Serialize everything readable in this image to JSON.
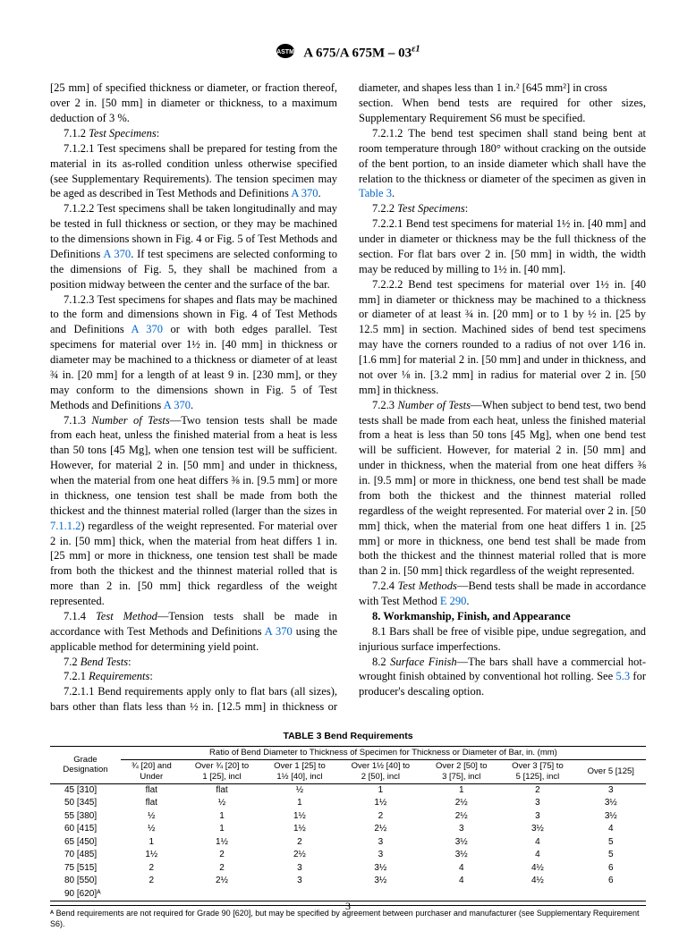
{
  "header": {
    "designation": "A 675/A 675M – 03",
    "eps": "ε1"
  },
  "body": {
    "p1": "[25 mm] of specified thickness or diameter, or fraction thereof, over 2 in. [50 mm] in diameter or thickness, to a maximum deduction of 3 %.",
    "s712_num": "7.1.2 ",
    "s712_t": "Test Specimens",
    "s7121": "7.1.2.1 Test specimens shall be prepared for testing from the material in its as-rolled condition unless otherwise specified (see Supplementary Requirements). The tension specimen may be aged as described in Test Methods and Definitions ",
    "a370": "A 370",
    "s7122a": "7.1.2.2 Test specimens shall be taken longitudinally and may be tested in full thickness or section, or they may be machined to the dimensions shown in Fig. 4 or Fig. 5 of Test Methods and Definitions ",
    "s7122b": ". If test specimens are selected conforming to the dimensions of Fig. 5, they shall be machined from a position midway between the center and the surface of the bar.",
    "s7123a": "7.1.2.3 Test specimens for shapes and flats may be machined to the form and dimensions shown in Fig. 4 of Test Methods and Definitions ",
    "s7123b": " or with both edges parallel. Test specimens for material over 1½ in. [40 mm] in thickness or diameter may be machined to a thickness or diameter of at least ¾ in. [20 mm] for a length of at least 9 in. [230 mm], or they may conform to the dimensions shown in Fig. 5 of Test Methods and Definitions ",
    "s713_num": "7.1.3 ",
    "s713_t": "Number of Tests",
    "s713a": "—Two tension tests shall be made from each heat, unless the finished material from a heat is less than 50 tons [45 Mg], when one tension test will be sufficient. However, for material 2 in. [50 mm] and under in thickness, when the material from one heat differs ⅜ in. [9.5 mm] or more in thickness, one tension test shall be made from both the thickest and the thinnest material rolled (larger than the sizes in ",
    "ref7112": "7.1.1.2",
    "s713b": ") regardless of the weight represented. For material over 2 in. [50 mm] thick, when the material from heat differs 1 in. [25 mm] or more in thickness, one tension test shall be made from both the thickest and the thinnest material rolled that is more than 2 in. [50 mm] thick regardless of the weight represented.",
    "s714_num": "7.1.4 ",
    "s714_t": "Test Method",
    "s714a": "—Tension tests shall be made in accordance with Test Methods and Definitions ",
    "s714b": " using the applicable method for determining yield point.",
    "s72_num": "7.2 ",
    "s72_t": "Bend Tests",
    "s721_num": "7.2.1 ",
    "s721_t": "Requirements",
    "s7211": "7.2.1.1 Bend requirements apply only to flat bars (all sizes), bars other than flats less than ½ in. [12.5 mm] in thickness or diameter, and shapes less than 1 in.² [645 mm²] in cross",
    "s7211c": "section. When bend tests are required for other sizes, Supplementary Requirement S6 must be specified.",
    "s7212a": "7.2.1.2 The bend test specimen shall stand being bent at room temperature through 180° without cracking on the outside of the bent portion, to an inside diameter which shall have the relation to the thickness or diameter of the specimen as given in ",
    "tab3": "Table 3",
    "s722_num": "7.2.2 ",
    "s722_t": "Test Specimens",
    "s7221": "7.2.2.1 Bend test specimens for material 1½ in. [40 mm] and under in diameter or thickness may be the full thickness of the section. For flat bars over 2 in. [50 mm] in width, the width may be reduced by milling to 1½ in. [40 mm].",
    "s7222": "7.2.2.2 Bend test specimens for material over 1½ in. [40 mm] in diameter or thickness may be machined to a thickness or diameter of at least ¾ in. [20 mm] or to 1 by ½ in. [25 by 12.5 mm] in section. Machined sides of bend test specimens may have the corners rounded to a radius of not over 1⁄16 in. [1.6 mm] for material 2 in. [50 mm] and under in thickness, and not over ⅛ in. [3.2 mm] in radius for material over 2 in. [50 mm] in thickness.",
    "s723_num": "7.2.3 ",
    "s723_t": "Number of Tests",
    "s723a": "—When subject to bend test, two bend tests shall be made from each heat, unless the finished material from a heat is less than 50 tons [45 Mg], when one bend test will be sufficient. However, for material 2 in. [50 mm] and under in thickness, when the material from one heat differs ⅜ in. [9.5 mm] or more in thickness, one bend test shall be made from both the thickest and the thinnest material rolled regardless of the weight represented. For material over 2 in. [50 mm] thick, when the material from one heat differs 1 in. [25 mm] or more in thickness, one bend test shall be made from both the thickest and the thinnest material rolled that is more than 2 in. [50 mm] thick regardless of the weight represented.",
    "s724_num": "7.2.4 ",
    "s724_t": "Test Methods",
    "s724a": "—Bend tests shall be made in accordance with Test Method ",
    "e290": "E 290",
    "s8": "8.  Workmanship, Finish, and Appearance",
    "s81": "8.1 Bars shall be free of visible pipe, undue segregation, and injurious surface imperfections.",
    "s82_num": "8.2 ",
    "s82_t": "Surface Finish",
    "s82a": "—The bars shall have a commercial hot-wrought finish obtained by conventional hot rolling. See ",
    "ref53": "5.3",
    "s82b": " for producer's descaling option."
  },
  "table": {
    "caption": "TABLE 3   Bend Requirements",
    "col0h1": "Grade",
    "col0h2": "Designation",
    "spanhdr": "Ratio of Bend Diameter to Thickness of Specimen for Thickness or Diameter of Bar, in. (mm)",
    "h1a": "¾ [20] and",
    "h1b": "Under",
    "h2a": "Over ¾ [20] to",
    "h2b": "1 [25], incl",
    "h3a": "Over 1 [25] to",
    "h3b": "1½ [40], incl",
    "h4a": "Over 1½ [40] to",
    "h4b": "2 [50], incl",
    "h5a": "Over 2 [50] to",
    "h5b": "3 [75], incl",
    "h6a": "Over 3 [75] to",
    "h6b": "5 [125], incl",
    "h7": "Over 5 [125]",
    "rows": [
      {
        "g": "45 [310]",
        "c": [
          "flat",
          "flat",
          "½",
          "1",
          "1",
          "2",
          "3"
        ]
      },
      {
        "g": "50 [345]",
        "c": [
          "flat",
          "½",
          "1",
          "1½",
          "2½",
          "3",
          "3½"
        ]
      },
      {
        "g": "55 [380]",
        "c": [
          "½",
          "1",
          "1½",
          "2",
          "2½",
          "3",
          "3½"
        ]
      },
      {
        "g": "60 [415]",
        "c": [
          "½",
          "1",
          "1½",
          "2½",
          "3",
          "3½",
          "4"
        ]
      },
      {
        "g": "65 [450]",
        "c": [
          "1",
          "1½",
          "2",
          "3",
          "3½",
          "4",
          "5"
        ]
      },
      {
        "g": "70 [485]",
        "c": [
          "1½",
          "2",
          "2½",
          "3",
          "3½",
          "4",
          "5"
        ]
      },
      {
        "g": "75 [515]",
        "c": [
          "2",
          "2",
          "3",
          "3½",
          "4",
          "4½",
          "6"
        ]
      },
      {
        "g": "80 [550]",
        "c": [
          "2",
          "2½",
          "3",
          "3½",
          "4",
          "4½",
          "6"
        ]
      },
      {
        "g": "90 [620]ᴬ",
        "c": [
          "",
          "",
          "",
          "",
          "",
          "",
          ""
        ]
      }
    ],
    "footnote_a": "ᴬ Bend requirements are not required for Grade 90 [620], but may be specified by agreement between purchaser and manufacturer (see Supplementary Requirement S6)."
  },
  "pagenum": "3"
}
